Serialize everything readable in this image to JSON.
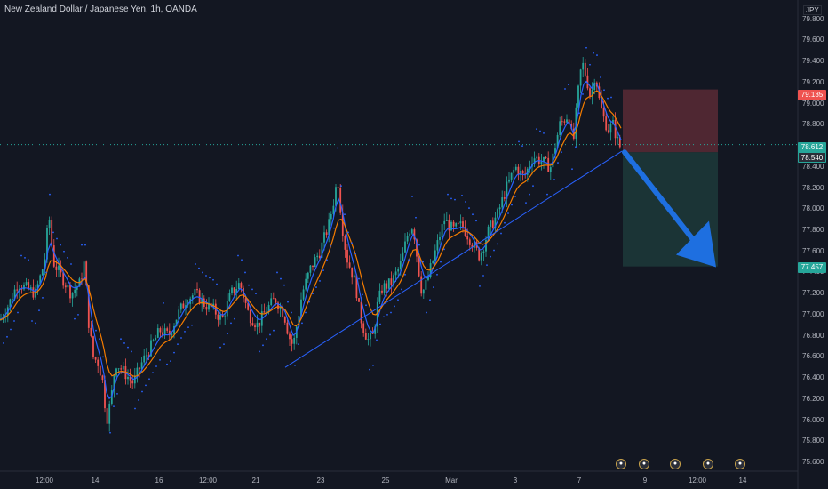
{
  "header": {
    "title": "New Zealand Dollar / Japanese Yen, 1h, OANDA",
    "currency": "JPY"
  },
  "price_labels": {
    "stop": "79.135",
    "last": "78.612",
    "entry": "78.540",
    "target": "77.457"
  },
  "colors": {
    "background": "#131722",
    "up": "#26a69a",
    "down": "#ef5350",
    "ema_fast": "#2962ff",
    "ema_slow": "#f57c00",
    "sar": "#2962ff",
    "trendline": "#2962ff",
    "stop_zone": "#5a2a35",
    "target_zone": "#1d3a3a",
    "arrow": "#1e6fe0"
  },
  "event_icons": [
    "flag-icon",
    "flag-icon",
    "flag-icon",
    "flag-icon",
    "flag-icon"
  ],
  "chart_data": {
    "type": "candlestick",
    "title": "New Zealand Dollar / Japanese Yen, 1h, OANDA",
    "yaxis": {
      "ticks": [
        "80.000",
        "79.800",
        "79.600",
        "79.400",
        "79.200",
        "79.000",
        "78.800",
        "78.600",
        "78.400",
        "78.200",
        "78.000",
        "77.800",
        "77.600",
        "77.400",
        "77.200",
        "77.000",
        "76.800",
        "76.600",
        "76.400",
        "76.200",
        "76.000",
        "75.800",
        "75.600"
      ],
      "range": [
        75.5,
        80.0
      ],
      "side": "right"
    },
    "xaxis": {
      "ticks": [
        "12:00",
        "14",
        "16",
        "12:00",
        "21",
        "23",
        "25",
        "Mar",
        "3",
        "7",
        "9",
        "12:00",
        "14"
      ]
    },
    "price_path": [
      [
        0,
        76.95
      ],
      [
        10,
        77.1
      ],
      [
        20,
        77.3
      ],
      [
        30,
        77.25
      ],
      [
        40,
        77.2
      ],
      [
        50,
        77.5
      ],
      [
        55,
        77.95
      ],
      [
        60,
        77.5
      ],
      [
        70,
        77.35
      ],
      [
        80,
        77.2
      ],
      [
        90,
        77.3
      ],
      [
        95,
        77.5
      ],
      [
        100,
        76.9
      ],
      [
        105,
        76.6
      ],
      [
        110,
        76.55
      ],
      [
        115,
        76.4
      ],
      [
        120,
        76.0
      ],
      [
        125,
        76.2
      ],
      [
        130,
        76.55
      ],
      [
        140,
        76.45
      ],
      [
        150,
        76.35
      ],
      [
        160,
        76.55
      ],
      [
        170,
        76.7
      ],
      [
        180,
        76.85
      ],
      [
        190,
        76.8
      ],
      [
        200,
        77.0
      ],
      [
        210,
        77.15
      ],
      [
        220,
        77.2
      ],
      [
        230,
        77.1
      ],
      [
        240,
        77.05
      ],
      [
        250,
        76.95
      ],
      [
        260,
        77.2
      ],
      [
        270,
        77.3
      ],
      [
        280,
        77.0
      ],
      [
        290,
        76.9
      ],
      [
        300,
        77.05
      ],
      [
        310,
        77.15
      ],
      [
        320,
        77.0
      ],
      [
        325,
        76.8
      ],
      [
        330,
        76.7
      ],
      [
        335,
        76.95
      ],
      [
        340,
        77.2
      ],
      [
        350,
        77.45
      ],
      [
        360,
        77.6
      ],
      [
        370,
        77.85
      ],
      [
        375,
        78.05
      ],
      [
        380,
        78.3
      ],
      [
        385,
        77.85
      ],
      [
        390,
        77.55
      ],
      [
        400,
        77.3
      ],
      [
        405,
        77.0
      ],
      [
        410,
        76.85
      ],
      [
        415,
        76.75
      ],
      [
        420,
        76.8
      ],
      [
        425,
        77.1
      ],
      [
        430,
        77.25
      ],
      [
        440,
        77.3
      ],
      [
        450,
        77.45
      ],
      [
        460,
        77.8
      ],
      [
        465,
        77.85
      ],
      [
        470,
        77.5
      ],
      [
        475,
        77.2
      ],
      [
        480,
        77.3
      ],
      [
        490,
        77.6
      ],
      [
        500,
        77.9
      ],
      [
        510,
        77.8
      ],
      [
        520,
        77.85
      ],
      [
        530,
        77.7
      ],
      [
        540,
        77.55
      ],
      [
        550,
        77.8
      ],
      [
        560,
        77.95
      ],
      [
        570,
        78.2
      ],
      [
        580,
        78.4
      ],
      [
        590,
        78.3
      ],
      [
        600,
        78.5
      ],
      [
        610,
        78.45
      ],
      [
        620,
        78.4
      ],
      [
        630,
        78.8
      ],
      [
        640,
        78.9
      ],
      [
        645,
        78.6
      ],
      [
        650,
        79.05
      ],
      [
        655,
        79.4
      ],
      [
        660,
        79.25
      ],
      [
        665,
        79.05
      ],
      [
        670,
        79.3
      ],
      [
        675,
        79.0
      ],
      [
        680,
        78.85
      ],
      [
        685,
        78.75
      ],
      [
        690,
        78.8
      ],
      [
        695,
        78.65
      ],
      [
        700,
        78.55
      ]
    ],
    "indicators": [
      "EMA fast",
      "EMA slow",
      "Parabolic SAR"
    ],
    "annotations": {
      "trendline": {
        "from": [
          "Feb 21",
          76.5
        ],
        "to": [
          "Mar 8",
          78.55
        ]
      },
      "short_position": {
        "entry": 78.54,
        "stop": 79.135,
        "target": 77.457
      },
      "projection_arrow": {
        "from": 78.54,
        "to": 77.457
      }
    }
  }
}
